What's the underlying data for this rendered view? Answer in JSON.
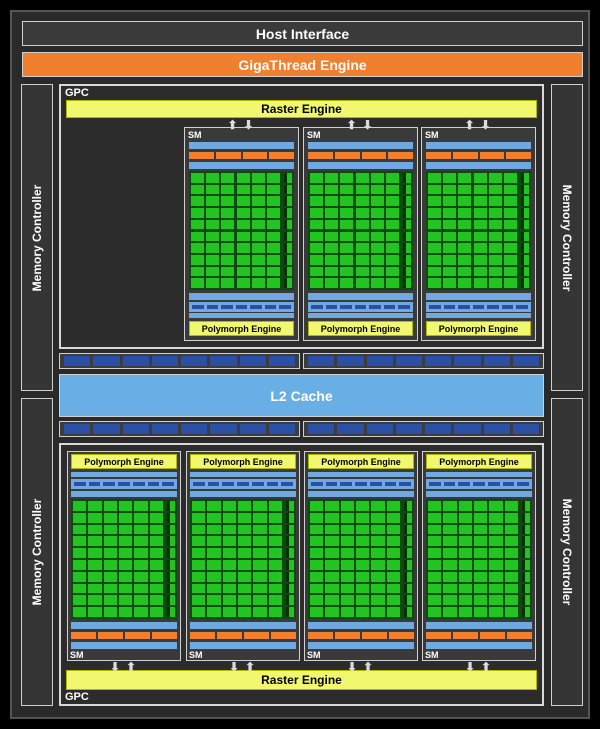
{
  "host_interface": "Host Interface",
  "gigathread_engine": "GigaThread Engine",
  "memory_controller": "Memory Controller",
  "gpc_label": "GPC",
  "raster_engine": "Raster Engine",
  "sm_label": "SM",
  "polymorph_engine": "Polymorph Engine",
  "l2_cache": "L2 Cache",
  "arrows": {
    "up": "⬆",
    "down": "⬇"
  },
  "colors": {
    "background": "#000000",
    "frame": "#2a2a2a",
    "orange": "#f07f2e",
    "yellow": "#f1f76e",
    "light_blue": "#6fa9e0",
    "dark_blue": "#2c4fa6",
    "green": "#21c421",
    "l2_blue": "#6aaee6"
  }
}
